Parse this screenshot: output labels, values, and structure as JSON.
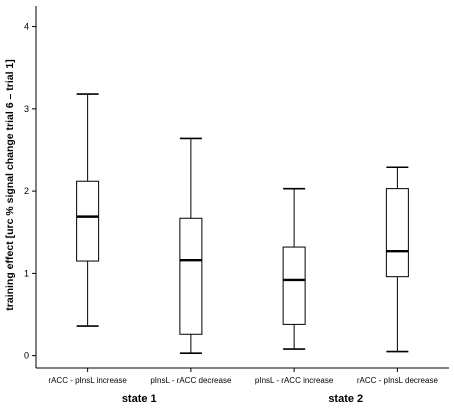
{
  "chart_data": {
    "type": "box",
    "ylabel": "training effect [urc % signal change trial 6 – trial 1]",
    "ylim": [
      -0.15,
      4.25
    ],
    "yticks": [
      "0",
      "1",
      "2",
      "3",
      "4"
    ],
    "grid": false,
    "categories": [
      "rACC - pInsL increase",
      "pInsL - rACC decrease",
      "pInsL - rACC increase",
      "rACC - pInsL decrease"
    ],
    "boxes": [
      {
        "min": 0.36,
        "q1": 1.15,
        "median": 1.69,
        "q3": 2.12,
        "max": 3.18
      },
      {
        "min": 0.03,
        "q1": 0.26,
        "median": 1.16,
        "q3": 1.67,
        "max": 2.64
      },
      {
        "min": 0.08,
        "q1": 0.38,
        "median": 0.92,
        "q3": 1.32,
        "max": 2.03
      },
      {
        "min": 0.05,
        "q1": 0.96,
        "median": 1.27,
        "q3": 2.03,
        "max": 2.29
      }
    ],
    "groups": [
      {
        "label": "state 1",
        "categories": [
          0,
          1
        ]
      },
      {
        "label": "state 2",
        "categories": [
          2,
          3
        ]
      }
    ]
  }
}
